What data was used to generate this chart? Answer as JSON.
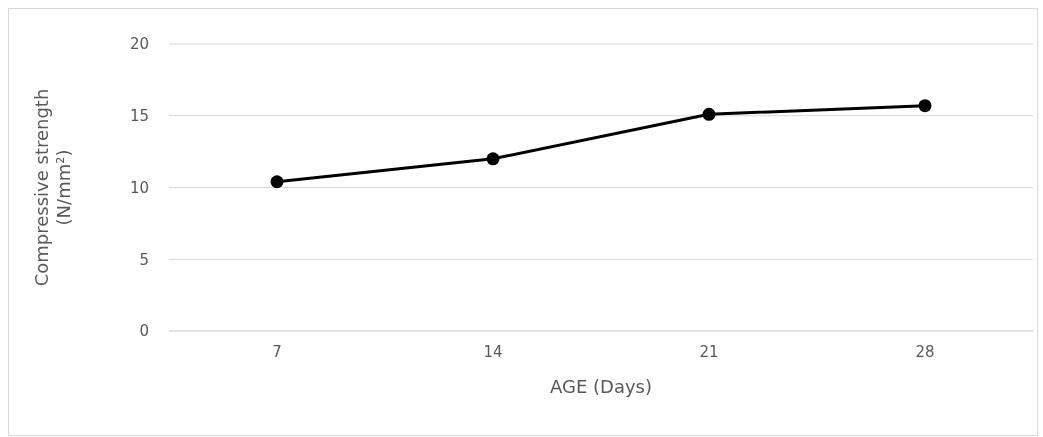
{
  "chart_data": {
    "type": "line",
    "xlabel": "AGE (Days)",
    "ylabel": "Compressive strength (N/mm²)",
    "categories": [
      "7",
      "14",
      "21",
      "28"
    ],
    "series": [
      {
        "color": "#000000",
        "values": [
          10.4,
          12.0,
          15.1,
          15.7
        ]
      }
    ],
    "ylim": [
      0,
      20
    ],
    "yticks": [
      0,
      5,
      10,
      15,
      20
    ],
    "grid": "y",
    "marker": "circle",
    "line_style": "solid"
  }
}
